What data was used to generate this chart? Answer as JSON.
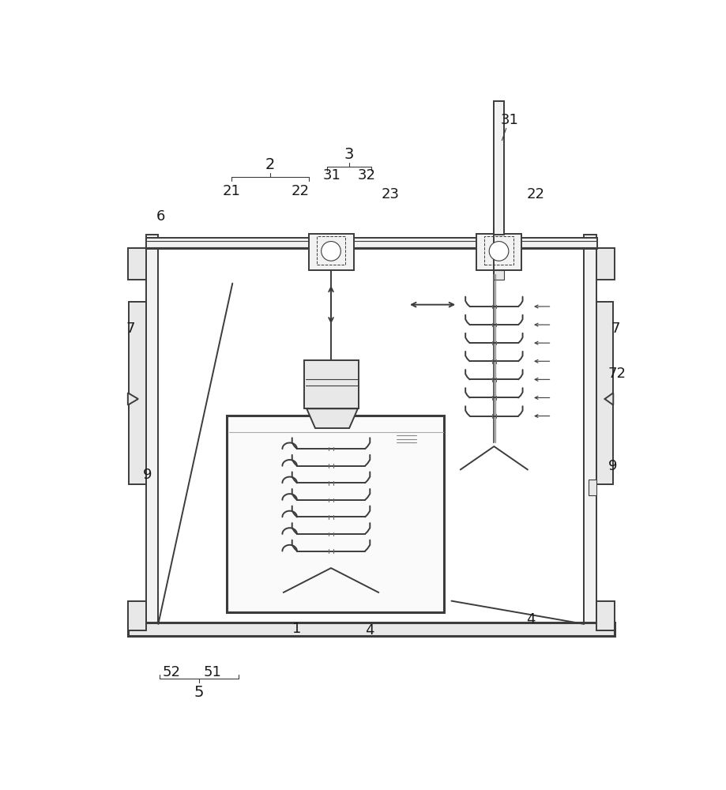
{
  "bg": "#ffffff",
  "lc": "#3c3c3c",
  "gray1": "#f2f2f2",
  "gray2": "#e8e8e8",
  "gray3": "#cccccc",
  "lw": 1.4,
  "lw2": 2.2,
  "lws": 0.8
}
